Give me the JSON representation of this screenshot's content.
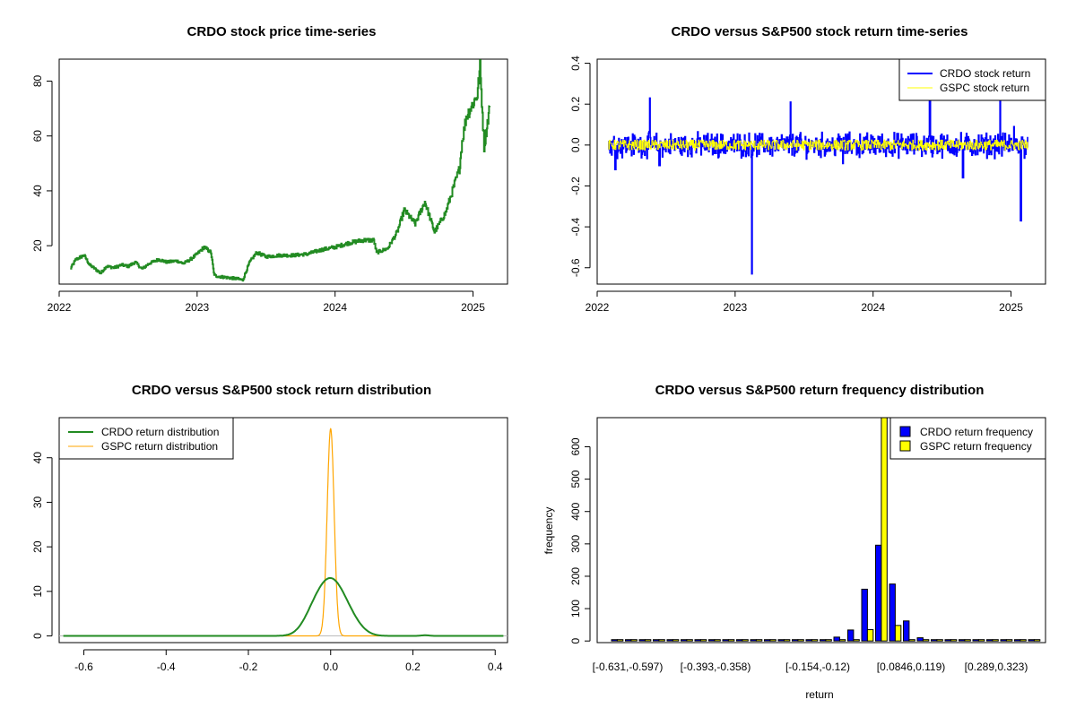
{
  "colors": {
    "crdo_price": "#228B22",
    "crdo_return": "#0000FF",
    "gspc_return": "#FFFF00",
    "crdo_density": "#228B22",
    "gspc_density": "#FFA500",
    "crdo_bar": "#0000FF",
    "gspc_bar": "#FFFF00"
  },
  "chart_data": [
    {
      "type": "line",
      "title": "CRDO stock price time-series",
      "xlabel": "",
      "ylabel": "",
      "x_ticks": [
        "2022",
        "2023",
        "2024",
        "2025"
      ],
      "y_ticks": [
        "20",
        "40",
        "60",
        "80"
      ],
      "xlim": [
        2022.0,
        2025.25
      ],
      "ylim": [
        6,
        88
      ],
      "series": [
        {
          "name": "CRDO price",
          "x": [
            2022.08,
            2022.12,
            2022.18,
            2022.22,
            2022.3,
            2022.34,
            2022.4,
            2022.45,
            2022.5,
            2022.55,
            2022.6,
            2022.65,
            2022.72,
            2022.78,
            2022.85,
            2022.9,
            2022.95,
            2023.0,
            2023.05,
            2023.1,
            2023.12,
            2023.13,
            2023.2,
            2023.28,
            2023.33,
            2023.38,
            2023.43,
            2023.5,
            2023.6,
            2023.7,
            2023.8,
            2023.9,
            2024.0,
            2024.1,
            2024.2,
            2024.28,
            2024.3,
            2024.38,
            2024.45,
            2024.5,
            2024.58,
            2024.65,
            2024.72,
            2024.8,
            2024.85,
            2024.9,
            2024.92,
            2024.95,
            2025.0,
            2025.03,
            2025.05,
            2025.08,
            2025.12
          ],
          "y": [
            11.5,
            15,
            16.5,
            13,
            10,
            12.5,
            12,
            13,
            12.5,
            14,
            11.5,
            13.5,
            15,
            14,
            14.5,
            13.5,
            15,
            17,
            19.5,
            17.5,
            10,
            9,
            8.5,
            8,
            7.5,
            14,
            17.5,
            16,
            16.5,
            16.5,
            17,
            18.5,
            19.5,
            21,
            22,
            22,
            17.5,
            19,
            25,
            33,
            28,
            36,
            25,
            32,
            40,
            48,
            58,
            67,
            72,
            75,
            85,
            56,
            71
          ]
        }
      ]
    },
    {
      "type": "line",
      "title": "CRDO versus S&P500 stock return time-series",
      "xlabel": "",
      "ylabel": "",
      "x_ticks": [
        "2022",
        "2023",
        "2024",
        "2025"
      ],
      "y_ticks": [
        "-0.6",
        "-0.4",
        "-0.2",
        "0.0",
        "0.2",
        "0.4"
      ],
      "xlim": [
        2022.0,
        2025.25
      ],
      "ylim": [
        -0.68,
        0.42
      ],
      "legend": [
        "CRDO stock return",
        "GSPC stock return"
      ],
      "legend_position": "top-right",
      "series": [
        {
          "name": "CRDO stock return",
          "spikes": [
            {
              "x": 2022.13,
              "y": -0.12
            },
            {
              "x": 2022.38,
              "y": 0.23
            },
            {
              "x": 2022.45,
              "y": -0.1
            },
            {
              "x": 2023.12,
              "y": -0.63
            },
            {
              "x": 2023.4,
              "y": 0.21
            },
            {
              "x": 2023.78,
              "y": -0.09
            },
            {
              "x": 2024.41,
              "y": 0.23
            },
            {
              "x": 2024.65,
              "y": -0.16
            },
            {
              "x": 2024.92,
              "y": 0.23
            },
            {
              "x": 2025.07,
              "y": -0.37
            },
            {
              "x": 2025.02,
              "y": 0.09
            }
          ]
        },
        {
          "name": "GSPC stock return",
          "range": [
            -0.04,
            0.04
          ]
        }
      ]
    },
    {
      "type": "line",
      "title": "CRDO versus S&P500 stock return distribution",
      "xlabel": "",
      "ylabel": "",
      "x_ticks": [
        "-0.6",
        "-0.4",
        "-0.2",
        "0.0",
        "0.2",
        "0.4"
      ],
      "y_ticks": [
        "0",
        "10",
        "20",
        "30",
        "40"
      ],
      "xlim": [
        -0.66,
        0.43
      ],
      "ylim": [
        -1.5,
        49
      ],
      "legend": [
        "CRDO return distribution",
        "GSPC return distribution"
      ],
      "legend_position": "top-left",
      "series": [
        {
          "name": "CRDO return distribution",
          "peak": 12.2,
          "mean": 0.0,
          "sd": 0.035
        },
        {
          "name": "GSPC return distribution",
          "peak": 46.5,
          "mean": 0.0,
          "sd": 0.0085
        }
      ]
    },
    {
      "type": "bar",
      "title": "CRDO versus S&P500 return frequency distribution",
      "xlabel": "return",
      "ylabel": "frequency",
      "y_ticks": [
        "0",
        "100",
        "200",
        "300",
        "400",
        "500",
        "600"
      ],
      "ylim": [
        -5,
        690
      ],
      "category_labels": [
        "[-0.631,-0.597)",
        "[-0.393,-0.358)",
        "[-0.154,-0.12)",
        "[0.0846,0.119)",
        "[0.289,0.323)"
      ],
      "legend": [
        "CRDO return frequency",
        "GSPC return frequency"
      ],
      "legend_position": "top-right",
      "series": [
        {
          "name": "CRDO return frequency",
          "values": [
            1,
            0,
            0,
            0,
            0,
            0,
            0,
            1,
            0,
            0,
            0,
            0,
            0,
            1,
            2,
            4,
            12,
            34,
            160,
            296,
            176,
            62,
            10,
            3,
            1,
            2,
            0,
            0,
            0,
            0,
            0
          ]
        },
        {
          "name": "GSPC return frequency",
          "values": [
            0,
            0,
            0,
            0,
            0,
            0,
            0,
            0,
            0,
            0,
            0,
            0,
            0,
            0,
            0,
            0,
            0,
            0,
            35,
            700,
            48,
            0,
            0,
            0,
            0,
            0,
            0,
            0,
            0,
            0,
            0
          ]
        }
      ]
    }
  ]
}
